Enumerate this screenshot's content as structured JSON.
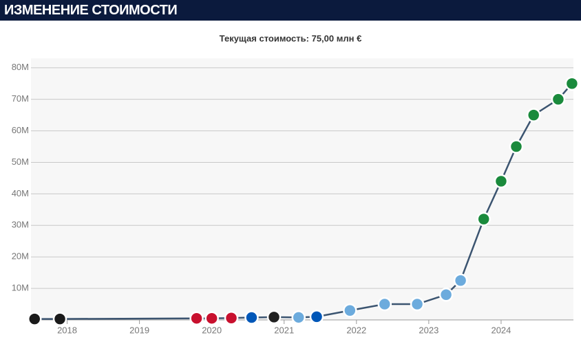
{
  "header": {
    "title": "ИЗМЕНЕНИЕ СТОИМОСТИ"
  },
  "chart_data": {
    "type": "line",
    "subtitle": "Текущая стоимость: 75,00 млн €",
    "x": [
      2017.55,
      2017.9,
      2019.79,
      2020.0,
      2020.27,
      2020.55,
      2020.86,
      2021.2,
      2021.45,
      2021.91,
      2022.39,
      2022.84,
      2023.24,
      2023.44,
      2023.76,
      2024.0,
      2024.21,
      2024.45,
      2024.79,
      2024.98
    ],
    "values": [
      0.3,
      0.3,
      0.5,
      0.5,
      0.6,
      0.75,
      0.9,
      0.8,
      1,
      3,
      5,
      5,
      8,
      12.5,
      32,
      44,
      55,
      65,
      70,
      75
    ],
    "point_colors": [
      "#1a1a1a",
      "#1a1a1a",
      "#c8102e",
      "#c8102e",
      "#c8102e",
      "#0057b8",
      "#222222",
      "#6cabdd",
      "#0057b8",
      "#6cabdd",
      "#6cabdd",
      "#6cabdd",
      "#6cabdd",
      "#6cabdd",
      "#1a8a3c",
      "#1a8a3c",
      "#1a8a3c",
      "#1a8a3c",
      "#1a8a3c",
      "#1a8a3c"
    ],
    "color": "#3b5470",
    "xlim": [
      2017.5,
      2025
    ],
    "xticks": [
      2018,
      2019,
      2020,
      2021,
      2022,
      2023,
      2024
    ],
    "ylim": [
      0,
      83
    ],
    "yticks": [
      {
        "value": 10,
        "label": "10M"
      },
      {
        "value": 20,
        "label": "20M"
      },
      {
        "value": 30,
        "label": "30M"
      },
      {
        "value": 40,
        "label": "40M"
      },
      {
        "value": 50,
        "label": "50M"
      },
      {
        "value": 60,
        "label": "60M"
      },
      {
        "value": 70,
        "label": "70M"
      },
      {
        "value": 80,
        "label": "80M"
      }
    ],
    "grid": true
  }
}
